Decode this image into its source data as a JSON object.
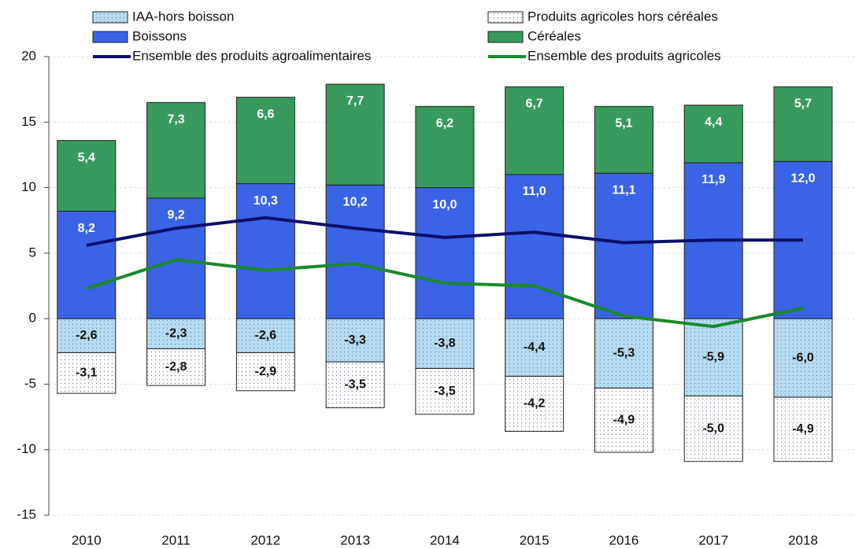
{
  "chart_data": {
    "type": "bar",
    "categories": [
      "2010",
      "2011",
      "2012",
      "2013",
      "2014",
      "2015",
      "2016",
      "2017",
      "2018"
    ],
    "series": [
      {
        "name": "IAA-hors boisson",
        "type": "bar",
        "color": "#b5dcf4",
        "pattern": "dots",
        "values": [
          -2.6,
          -2.3,
          -2.6,
          -3.3,
          -3.8,
          -4.4,
          -5.3,
          -5.9,
          -6.0
        ],
        "value_labels": [
          "-2,6",
          "-2,3",
          "-2,6",
          "-3,3",
          "-3,8",
          "-4,4",
          "-5,3",
          "-5,9",
          "-6,0"
        ]
      },
      {
        "name": "Produits agricoles hors céréales",
        "type": "bar",
        "color": "#ffffff",
        "pattern": "dots",
        "values": [
          -3.1,
          -2.8,
          -2.9,
          -3.5,
          -3.5,
          -4.2,
          -4.9,
          -5.0,
          -4.9
        ],
        "value_labels": [
          "-3,1",
          "-2,8",
          "-2,9",
          "-3,5",
          "-3,5",
          "-4,2",
          "-4,9",
          "-5,0",
          "-4,9"
        ]
      },
      {
        "name": "Boissons",
        "type": "bar",
        "color": "#3b63e6",
        "values": [
          8.2,
          9.2,
          10.3,
          10.2,
          10.0,
          11.0,
          11.1,
          11.9,
          12.0
        ],
        "value_labels": [
          "8,2",
          "9,2",
          "10,3",
          "10,2",
          "10,0",
          "11,0",
          "11,1",
          "11,9",
          "12,0"
        ]
      },
      {
        "name": "Céréales",
        "type": "bar",
        "color": "#389a5c",
        "values": [
          5.4,
          7.3,
          6.6,
          7.7,
          6.2,
          6.7,
          5.1,
          4.4,
          5.7
        ],
        "value_labels": [
          "5,4",
          "7,3",
          "6,6",
          "7,7",
          "6,2",
          "6,7",
          "5,1",
          "4,4",
          "5,7"
        ]
      },
      {
        "name": "Ensemble des produits agroalimentaires",
        "type": "line",
        "color": "#0b0f6b",
        "values": [
          5.6,
          6.9,
          7.7,
          6.9,
          6.2,
          6.6,
          5.8,
          6.0,
          6.0
        ]
      },
      {
        "name": "Ensemble des produits agricoles",
        "type": "line",
        "color": "#1a8a2c",
        "values": [
          2.3,
          4.5,
          3.7,
          4.2,
          2.7,
          2.5,
          0.2,
          -0.6,
          0.8
        ]
      }
    ],
    "ylim": [
      -15,
      20
    ],
    "yticks": [
      -15,
      -10,
      -5,
      0,
      5,
      10,
      15,
      20
    ],
    "grid": true
  }
}
